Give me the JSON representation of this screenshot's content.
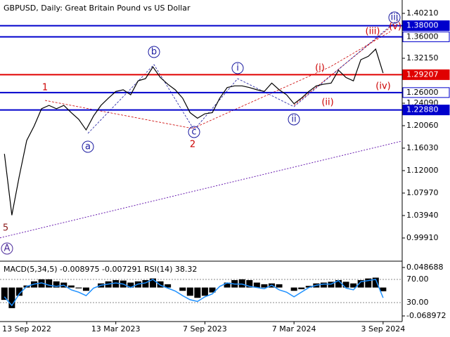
{
  "chart_data": [
    {
      "type": "line",
      "title": "GBPUSD, Daily:  Great Britain Pound vs US Dollar",
      "categories": [
        null,
        null,
        null,
        "13 Sep 2022",
        null,
        null,
        null,
        null,
        null,
        null,
        null,
        null,
        null,
        null,
        null,
        "13 Mar 2023",
        null,
        null,
        null,
        null,
        null,
        null,
        null,
        null,
        null,
        null,
        null,
        "7 Sep 2023",
        null,
        null,
        null,
        null,
        null,
        null,
        null,
        null,
        null,
        null,
        null,
        "7 Mar 2024",
        null,
        null,
        null,
        null,
        null,
        null,
        null,
        null,
        null,
        null,
        null,
        "3 Sep 2024"
      ],
      "values": [
        1.15,
        1.04,
        1.11,
        1.174,
        1.2,
        1.231,
        1.237,
        1.231,
        1.237,
        1.224,
        1.212,
        1.193,
        1.218,
        1.237,
        1.25,
        1.262,
        1.265,
        1.256,
        1.281,
        1.285,
        1.306,
        1.287,
        1.275,
        1.265,
        1.25,
        1.224,
        1.214,
        1.222,
        1.224,
        1.25,
        1.269,
        1.272,
        1.272,
        1.269,
        1.265,
        1.262,
        1.277,
        1.265,
        1.256,
        1.24,
        1.25,
        1.262,
        1.272,
        1.275,
        1.277,
        1.3,
        1.287,
        1.281,
        1.319,
        1.325,
        1.338,
        1.295
      ],
      "color": "#000000",
      "ylim": [
        0.9575,
        1.416
      ],
      "yticks": [
        {
          "value": 1.4021,
          "label": "1.40210"
        },
        {
          "value": 1.3215,
          "label": "1.32150"
        },
        {
          "value": 1.2409,
          "label": "1.24090"
        },
        {
          "value": 1.2006,
          "label": "1.20060"
        },
        {
          "value": 1.1603,
          "label": "1.16030"
        },
        {
          "value": 1.12,
          "label": "1.12000"
        },
        {
          "value": 1.0797,
          "label": "1.07970"
        },
        {
          "value": 1.0394,
          "label": "1.03940"
        },
        {
          "value": 0.9991,
          "label": "0.99910"
        }
      ],
      "levels": [
        {
          "value": 1.38,
          "label": "1.38000",
          "color": "#0000cc",
          "label_fill": "#0000cc"
        },
        {
          "value": 1.36,
          "label": "1.36000",
          "color": "#0000cc",
          "label_fill": "#ffffff"
        },
        {
          "value": 1.29207,
          "label": "1.29207",
          "color": "#e00000",
          "label_fill": "#e00000"
        },
        {
          "value": 1.26,
          "label": "1.26000",
          "color": "#0000cc",
          "label_fill": "#ffffff"
        },
        {
          "value": 1.2288,
          "label": "1.22880",
          "color": "#0000cc",
          "label_fill": "#0000cc"
        }
      ],
      "trendline": {
        "values": [
          0.9993,
          1.1731
        ],
        "color": "#6a1fb0"
      },
      "annotations": [
        {
          "text": "5",
          "color": "#8b1a1a"
        },
        {
          "text": "A",
          "color": "#4b2a9a"
        },
        {
          "text": "1",
          "color": "#cc0000"
        },
        {
          "text": "2",
          "color": "#cc0000"
        },
        {
          "text": "a",
          "color": "#1a1aa0"
        },
        {
          "text": "b",
          "color": "#1a1aa0"
        },
        {
          "text": "c",
          "color": "#1a1aa0"
        },
        {
          "text": "i",
          "color": "#1a1aa0"
        },
        {
          "text": "ii",
          "color": "#1a1aa0"
        },
        {
          "text": "iii",
          "color": "#1a1aa0"
        },
        {
          "text": "(i)",
          "color": "#cc0000"
        },
        {
          "text": "(ii)",
          "color": "#cc0000"
        },
        {
          "text": "(iii)",
          "color": "#cc0000"
        },
        {
          "text": "(iv)",
          "color": "#cc0000"
        },
        {
          "text": "(v)",
          "color": "#cc0000"
        }
      ]
    },
    {
      "type": "indicator",
      "title": "MACD(5,34,5) -0.008975 -0.007291 RSI(14) 38.32",
      "series": [
        {
          "values": [
            -0.03,
            -0.05,
            -0.02,
            0.005,
            0.015,
            0.02,
            0.02,
            0.015,
            0.012,
            0.005,
            -0.002,
            -0.008,
            0,
            0.01,
            0.015,
            0.018,
            0.017,
            0.012,
            0.015,
            0.018,
            0.022,
            0.015,
            0.008,
            0,
            -0.008,
            -0.02,
            -0.025,
            -0.02,
            -0.012,
            0,
            0.012,
            0.018,
            0.02,
            0.018,
            0.012,
            0.008,
            0.01,
            0.008,
            0,
            -0.008,
            -0.004,
            0.004,
            0.01,
            0.012,
            0.014,
            0.018,
            0.014,
            0.01,
            0.018,
            0.022,
            0.024,
            -0.008975
          ],
          "color": "#000000"
        },
        {
          "values": [
            40,
            25,
            45,
            58,
            62,
            64,
            60,
            58,
            60,
            52,
            48,
            42,
            55,
            60,
            62,
            64,
            62,
            56,
            62,
            64,
            70,
            60,
            55,
            50,
            42,
            35,
            32,
            40,
            45,
            58,
            64,
            62,
            62,
            58,
            56,
            54,
            60,
            52,
            48,
            40,
            48,
            56,
            60,
            62,
            62,
            68,
            55,
            52,
            66,
            68,
            70,
            38.32
          ],
          "color": "#1e90ff",
          "axis": "y2"
        }
      ],
      "ylim": [
        -0.0826,
        0.064
      ],
      "yticks": [
        0.048688,
        -0.068972
      ],
      "y2lim": [
        -2.7,
        101.5
      ],
      "y2ticks": [
        {
          "value": 70,
          "label": "70.00"
        },
        {
          "value": 30,
          "label": "30.00"
        }
      ]
    }
  ]
}
